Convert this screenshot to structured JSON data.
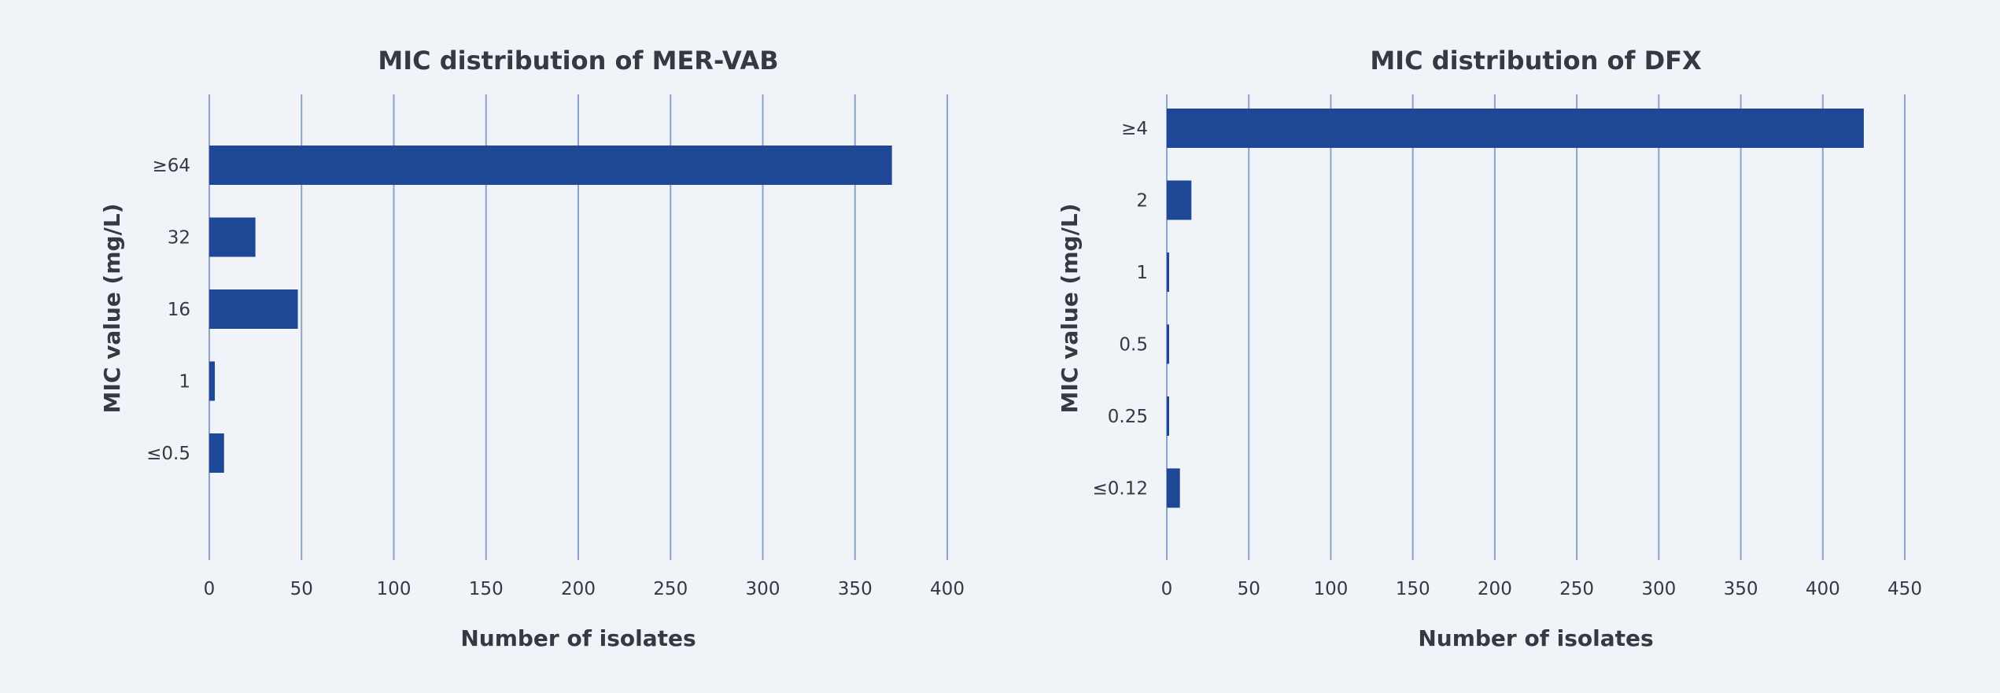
{
  "chart_data": [
    {
      "type": "bar",
      "orientation": "horizontal",
      "title": "MIC distribution of MER-VAB",
      "xlabel": "Number of isolates",
      "ylabel": "MIC value (mg/L)",
      "categories": [
        "≥64",
        "32",
        "16",
        "1",
        "≤0.5"
      ],
      "values": [
        370,
        25,
        48,
        3,
        8
      ],
      "xlim": [
        0,
        400
      ],
      "xticks": [
        0,
        50,
        100,
        150,
        200,
        250,
        300,
        350,
        400
      ],
      "xtick_labels": [
        "0",
        "50",
        "100",
        "150",
        "200",
        "250",
        "300",
        "350",
        "400"
      ],
      "grid": true,
      "bar_color": "#1e4795"
    },
    {
      "type": "bar",
      "orientation": "horizontal",
      "title": "MIC distribution of DFX",
      "xlabel": "Number of isolates",
      "ylabel": "MIC value (mg/L)",
      "categories": [
        "≥4",
        "2",
        "1",
        "0.5",
        "0.25",
        "≤0.12"
      ],
      "values": [
        425,
        15,
        1,
        1,
        1,
        8
      ],
      "xlim": [
        0,
        450
      ],
      "xticks": [
        0,
        50,
        100,
        150,
        200,
        250,
        300,
        350,
        400,
        450
      ],
      "xtick_labels": [
        "0",
        "50",
        "100",
        "150",
        "200",
        "250",
        "300",
        "350",
        "400",
        "450"
      ],
      "grid": true,
      "bar_color": "#1e4795"
    }
  ]
}
